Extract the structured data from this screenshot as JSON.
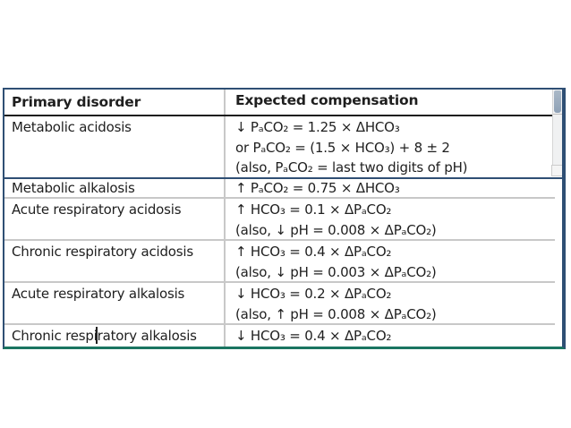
{
  "table": {
    "headers": [
      "Primary disorder",
      "Expected compensation"
    ],
    "rows": [
      {
        "disorder": "Metabolic acidosis",
        "compensation_lines": [
          "↓ PₐCO₂ = 1.25 × ΔHCO₃",
          "or PₐCO₂ = (1.5 × HCO₃) + 8 ± 2",
          "(also, PₐCO₂ = last two digits of pH)"
        ]
      },
      {
        "disorder": "Metabolic alkalosis",
        "compensation_lines": [
          "↑ PₐCO₂ = 0.75 × ΔHCO₃"
        ]
      },
      {
        "disorder": "Acute respiratory acidosis",
        "compensation_lines": [
          "↑ HCO₃ = 0.1 × ΔPₐCO₂",
          "(also, ↓ pH = 0.008 × ΔPₐCO₂)"
        ]
      },
      {
        "disorder": "Chronic respiratory acidosis",
        "compensation_lines": [
          "↑ HCO₃ = 0.4 × ΔPₐCO₂",
          "(also, ↓ pH = 0.003 × ΔPₐCO₂)"
        ]
      },
      {
        "disorder": "Acute respiratory alkalosis",
        "compensation_lines": [
          "↓ HCO₃ = 0.2 × ΔPₐCO₂",
          "(also, ↑ pH = 0.008 × ΔPₐCO₂)"
        ]
      },
      {
        "disorder": "Chronic respiratory alkalosis",
        "compensation_lines": [
          "↓ HCO₃ = 0.4 × ΔPₐCO₂"
        ]
      }
    ]
  },
  "colors": {
    "focus_border": "#2f4f74",
    "bottom_rule": "#1a7561",
    "header_rule": "#1c1c1c",
    "row_divider": "#c8c8c8",
    "text": "#1f1f1f",
    "scrollbar_thumb": "#8ea1b6",
    "scrollbar_track": "#f0f1f2"
  }
}
